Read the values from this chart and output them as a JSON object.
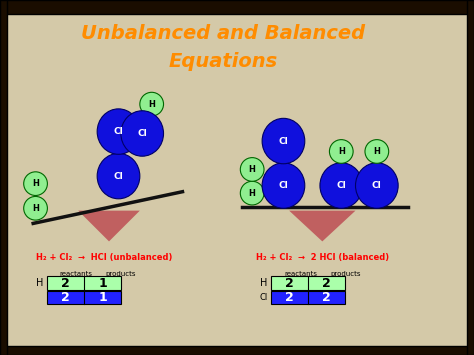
{
  "title_line1": "Unbalanced and Balanced",
  "title_line2": "Equations",
  "title_color": "#FF8C00",
  "outer_bg": "#2A1A0A",
  "inner_bg": "#D4C9A8",
  "eq1_text": "H₂ + Cl₂  →  HCl (unbalanced)",
  "eq2_text": "H₂ + Cl₂  →  2 HCl (balanced)",
  "eq_color": "#FF0000",
  "cl_color": "#1010DD",
  "h_color": "#90EE90",
  "table1_light": "#AAFFAA",
  "table1_dark": "#2222FF",
  "table2_light": "#AAFFAA",
  "table2_dark": "#2222FF",
  "triangle_color": "#C06060",
  "beam_color": "#111111"
}
